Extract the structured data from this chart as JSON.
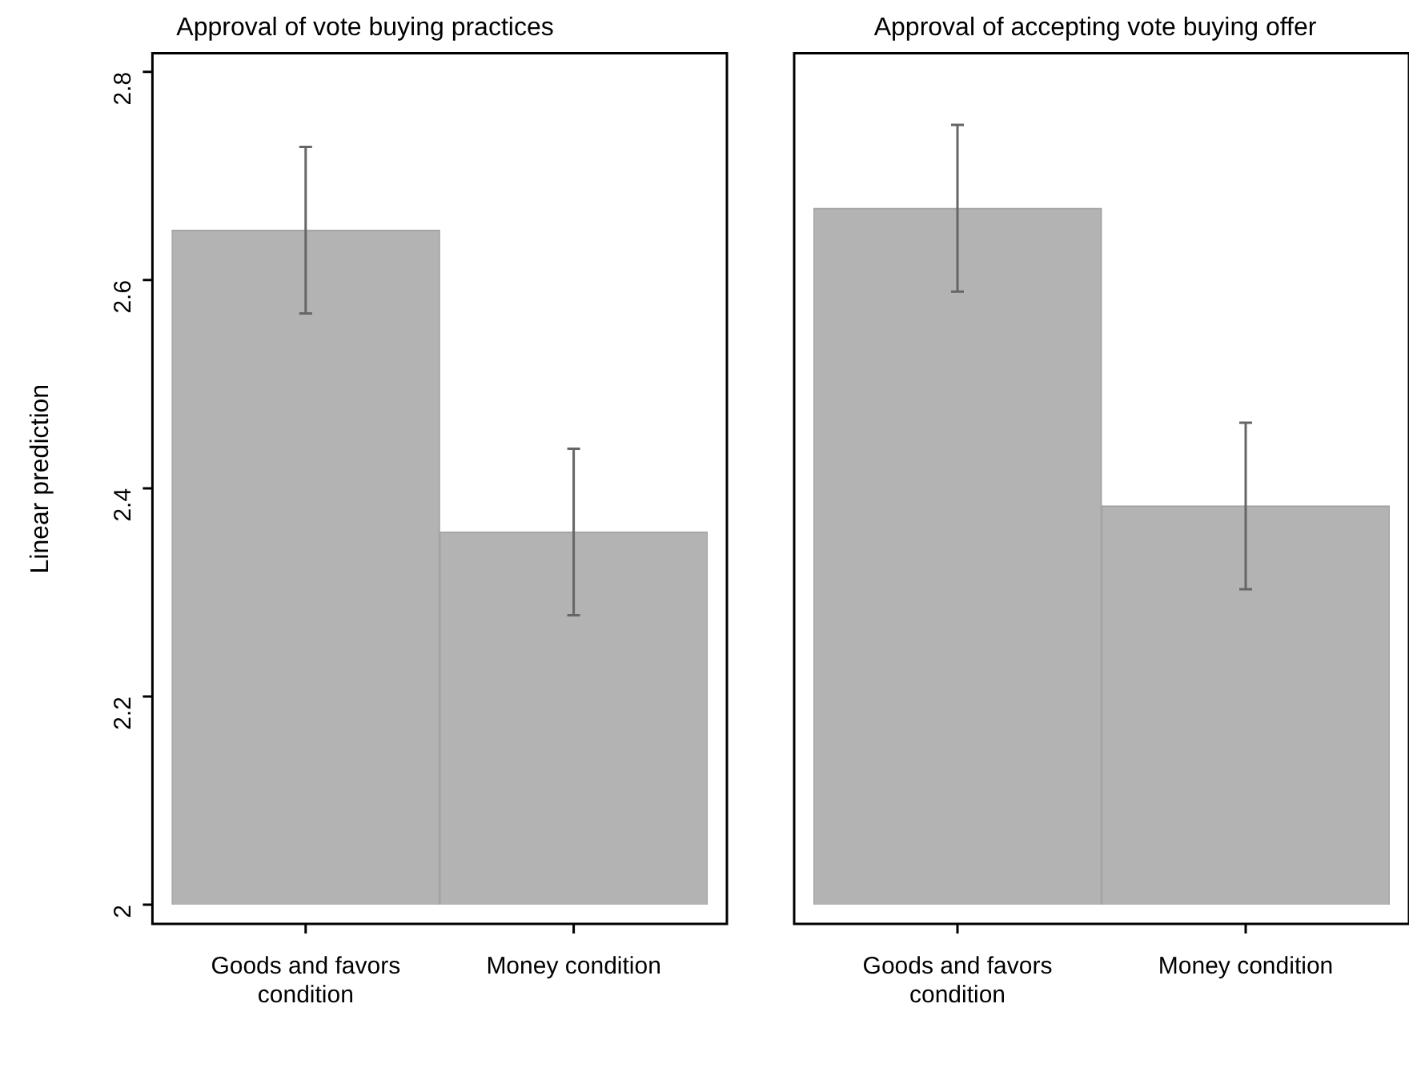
{
  "chart_data": [
    {
      "type": "bar",
      "title": "Approval of vote buying practices",
      "ylabel": "Linear prediction",
      "categories": [
        "Goods and favors condition",
        "Money condition"
      ],
      "values": [
        2.648,
        2.358
      ],
      "errors": [
        0.08,
        0.08
      ],
      "color": "#b3b3b3",
      "ylim": [
        2,
        2.818
      ],
      "yticks": [
        2,
        2.2,
        2.4,
        2.6,
        2.8
      ]
    },
    {
      "type": "bar",
      "title": "Approval of accepting vote buying offer",
      "categories": [
        "Goods and favors condition",
        "Money condition"
      ],
      "values": [
        2.669,
        2.383
      ],
      "errors": [
        0.08,
        0.08
      ],
      "color": "#b3b3b3",
      "ylim": [
        2,
        2.818
      ],
      "yticks": [
        2,
        2.2,
        2.4,
        2.6,
        2.8
      ],
      "tick_labels": "x"
    }
  ]
}
